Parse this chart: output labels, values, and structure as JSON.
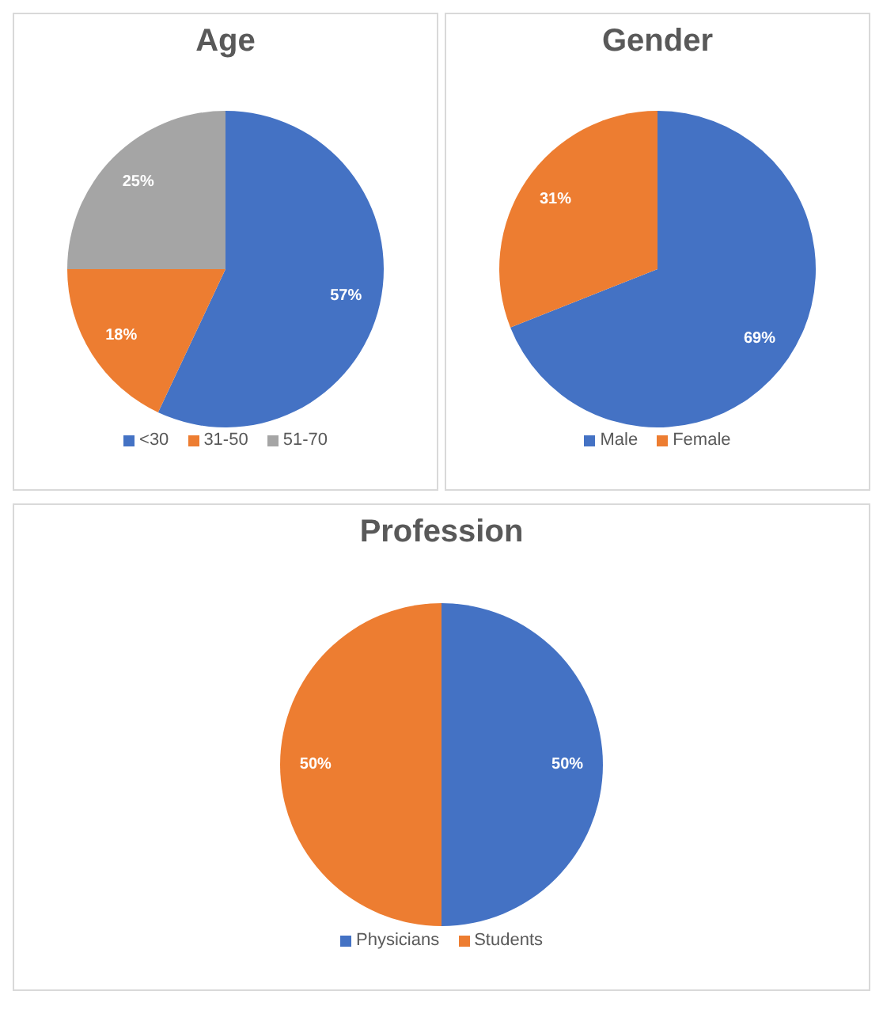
{
  "chart_data": [
    {
      "type": "pie",
      "title": "Age",
      "categories": [
        "<30",
        "31-50",
        "51-70"
      ],
      "values": [
        57,
        18,
        25
      ],
      "value_labels": [
        "57%",
        "18%",
        "25%"
      ],
      "colors": [
        "#4472c4",
        "#ed7d31",
        "#a5a5a5"
      ],
      "legend": "bottom"
    },
    {
      "type": "pie",
      "title": "Gender",
      "categories": [
        "Male",
        "Female"
      ],
      "values": [
        69,
        31
      ],
      "value_labels": [
        "69%",
        "31%"
      ],
      "colors": [
        "#4472c4",
        "#ed7d31"
      ],
      "legend": "bottom"
    },
    {
      "type": "pie",
      "title": "Profession",
      "categories": [
        "Physicians",
        "Students"
      ],
      "values": [
        50,
        50
      ],
      "value_labels": [
        "50%",
        "50%"
      ],
      "colors": [
        "#4472c4",
        "#ed7d31"
      ],
      "legend": "bottom"
    }
  ]
}
